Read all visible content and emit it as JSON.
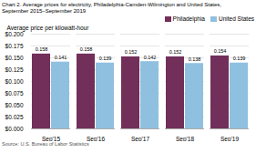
{
  "chart_data": {
    "type": "bar",
    "title": "Chart 2. Average prices for electricity, Philadelphia-Camden-Wilmington and United States,",
    "subtitle": "September 2015–September 2019",
    "ylabel": "Average price per kilowatt-hour",
    "source": "Source: U.S. Bureau of Labor Statistics",
    "categories": [
      "Sep'15",
      "Sep'16",
      "Sep'17",
      "Sep'18",
      "Sep'19"
    ],
    "series": [
      {
        "name": "Philadelphia",
        "color": "#722f5a",
        "values": [
          0.158,
          0.158,
          0.152,
          0.152,
          0.154
        ]
      },
      {
        "name": "United States",
        "color": "#90c0e0",
        "values": [
          0.141,
          0.139,
          0.142,
          0.138,
          0.139
        ]
      }
    ],
    "ylim": [
      0.0,
      0.2
    ],
    "yticks": [
      {
        "value": 0.0,
        "label": "$0.000"
      },
      {
        "value": 0.025,
        "label": "$0.025"
      },
      {
        "value": 0.05,
        "label": "$0.050"
      },
      {
        "value": 0.075,
        "label": "$0.075"
      },
      {
        "value": 0.1,
        "label": "$0.100"
      },
      {
        "value": 0.125,
        "label": "$0.125"
      },
      {
        "value": 0.15,
        "label": "$0.150"
      },
      {
        "value": 0.175,
        "label": "$0.175"
      },
      {
        "value": 0.2,
        "label": "$0.200"
      }
    ],
    "grid": true,
    "legend": "upper right",
    "data_labels": true
  }
}
